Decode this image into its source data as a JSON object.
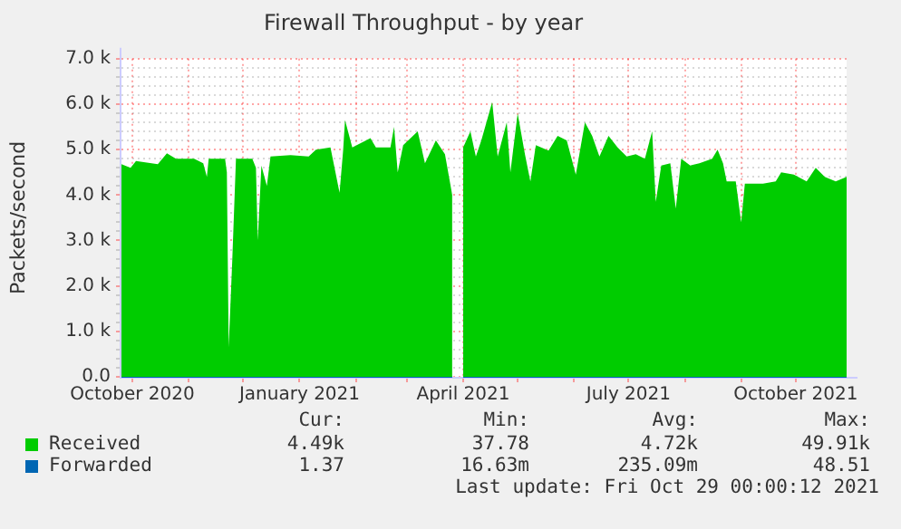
{
  "chart_data": {
    "type": "area",
    "title": "Firewall Throughput - by year",
    "ylabel": "Packets/second",
    "x": [
      "2020-09-25",
      "2020-09-30",
      "2020-10-03",
      "2020-10-15",
      "2020-10-20",
      "2020-10-25",
      "2020-11-04",
      "2020-11-09",
      "2020-11-11",
      "2020-11-12",
      "2020-11-21",
      "2020-11-22",
      "2020-11-23",
      "2020-11-25",
      "2020-11-27",
      "2020-12-06",
      "2020-12-08",
      "2020-12-09",
      "2020-12-11",
      "2020-12-14",
      "2020-12-16",
      "2020-12-27",
      "2021-01-06",
      "2021-01-10",
      "2021-01-18",
      "2021-01-23",
      "2021-01-25",
      "2021-01-26",
      "2021-01-30",
      "2021-02-09",
      "2021-02-12",
      "2021-02-20",
      "2021-02-22",
      "2021-02-24",
      "2021-02-27",
      "2021-03-07",
      "2021-03-11",
      "2021-03-17",
      "2021-03-22",
      "2021-03-26",
      "2021-03-29",
      "2021-04-01",
      "2021-04-05",
      "2021-04-08",
      "2021-04-11",
      "2021-04-17",
      "2021-04-20",
      "2021-04-25",
      "2021-04-27",
      "2021-05-01",
      "2021-05-05",
      "2021-05-08",
      "2021-05-11",
      "2021-05-18",
      "2021-05-23",
      "2021-05-28",
      "2021-06-02",
      "2021-06-07",
      "2021-06-11",
      "2021-06-15",
      "2021-06-20",
      "2021-06-25",
      "2021-06-30",
      "2021-07-05",
      "2021-07-10",
      "2021-07-14",
      "2021-07-16",
      "2021-07-19",
      "2021-07-24",
      "2021-07-27",
      "2021-07-30",
      "2021-08-04",
      "2021-08-09",
      "2021-08-16",
      "2021-08-19",
      "2021-08-22",
      "2021-08-24",
      "2021-08-29",
      "2021-09-01",
      "2021-09-03",
      "2021-09-13",
      "2021-09-20",
      "2021-09-23",
      "2021-09-30",
      "2021-10-07",
      "2021-10-12",
      "2021-10-17",
      "2021-10-23",
      "2021-10-29"
    ],
    "series": [
      {
        "name": "Received",
        "color": "#00cc00",
        "values": [
          4680,
          4600,
          4750,
          4680,
          4920,
          4800,
          4800,
          4700,
          4400,
          4800,
          4800,
          4500,
          650,
          2600,
          4800,
          4800,
          4600,
          3000,
          4650,
          4200,
          4850,
          4880,
          4850,
          5000,
          5050,
          4050,
          5000,
          5650,
          5050,
          5250,
          5050,
          5050,
          5500,
          4500,
          5100,
          5400,
          4700,
          5200,
          4900,
          4000,
          null,
          5050,
          5400,
          4850,
          5200,
          6050,
          4850,
          5600,
          4500,
          5800,
          4900,
          4300,
          5100,
          4980,
          5300,
          5200,
          4450,
          5600,
          5300,
          4850,
          5300,
          5050,
          4850,
          4900,
          4800,
          5400,
          3850,
          4650,
          4700,
          3700,
          4800,
          4650,
          4700,
          4800,
          5000,
          4700,
          4300,
          4300,
          3400,
          4250,
          4250,
          4300,
          4500,
          4450,
          4300,
          4600,
          4400,
          4300,
          4400
        ]
      },
      {
        "name": "Forwarded",
        "color": "#0066b3",
        "type": "line",
        "x": [
          "2020-09-25",
          "2021-03-26",
          "2021-03-29",
          "2021-04-01",
          "2021-10-29"
        ],
        "values": [
          0,
          0,
          null,
          0,
          0
        ]
      }
    ],
    "xlim": [
      "2020-09-25",
      "2021-10-29"
    ],
    "xticks": [
      {
        "value": "2020-10-01",
        "label": "October 2020"
      },
      {
        "value": "2020-11-01",
        "label": null
      },
      {
        "value": "2020-12-01",
        "label": null
      },
      {
        "value": "2021-01-01",
        "label": "January 2021"
      },
      {
        "value": "2021-02-01",
        "label": null
      },
      {
        "value": "2021-03-01",
        "label": null
      },
      {
        "value": "2021-04-01",
        "label": "April 2021"
      },
      {
        "value": "2021-05-01",
        "label": null
      },
      {
        "value": "2021-06-01",
        "label": null
      },
      {
        "value": "2021-07-01",
        "label": "July 2021"
      },
      {
        "value": "2021-08-01",
        "label": null
      },
      {
        "value": "2021-09-01",
        "label": null
      },
      {
        "value": "2021-10-01",
        "label": "October 2021"
      }
    ],
    "ylim": [
      0,
      7000
    ],
    "yticks": [
      {
        "value": 0,
        "label": "0.0"
      },
      {
        "value": 200,
        "label": null
      },
      {
        "value": 400,
        "label": null
      },
      {
        "value": 600,
        "label": null
      },
      {
        "value": 800,
        "label": null
      },
      {
        "value": 1000,
        "label": "1.0 k"
      },
      {
        "value": 1200,
        "label": null
      },
      {
        "value": 1400,
        "label": null
      },
      {
        "value": 1600,
        "label": null
      },
      {
        "value": 1800,
        "label": null
      },
      {
        "value": 2000,
        "label": "2.0 k"
      },
      {
        "value": 2200,
        "label": null
      },
      {
        "value": 2400,
        "label": null
      },
      {
        "value": 2600,
        "label": null
      },
      {
        "value": 2800,
        "label": null
      },
      {
        "value": 3000,
        "label": "3.0 k"
      },
      {
        "value": 3200,
        "label": null
      },
      {
        "value": 3400,
        "label": null
      },
      {
        "value": 3600,
        "label": null
      },
      {
        "value": 3800,
        "label": null
      },
      {
        "value": 4000,
        "label": "4.0 k"
      },
      {
        "value": 4200,
        "label": null
      },
      {
        "value": 4400,
        "label": null
      },
      {
        "value": 4600,
        "label": null
      },
      {
        "value": 4800,
        "label": null
      },
      {
        "value": 5000,
        "label": "5.0 k"
      },
      {
        "value": 5200,
        "label": null
      },
      {
        "value": 5400,
        "label": null
      },
      {
        "value": 5600,
        "label": null
      },
      {
        "value": 5800,
        "label": null
      },
      {
        "value": 6000,
        "label": "6.0 k"
      },
      {
        "value": 6200,
        "label": null
      },
      {
        "value": 6400,
        "label": null
      },
      {
        "value": 6600,
        "label": null
      },
      {
        "value": 6800,
        "label": null
      },
      {
        "value": 7000,
        "label": "7.0 k"
      }
    ],
    "grid": true,
    "legend": "bottom",
    "annotations": [
      "Cur:",
      "Min:",
      "Avg:",
      "Max:",
      "4.49k",
      "37.78",
      "4.72k",
      "49.91k",
      "1.37",
      "16.63m",
      "235.09m",
      "48.51",
      "Last update: Fri Oct 29 00:00:12 2021"
    ]
  }
}
